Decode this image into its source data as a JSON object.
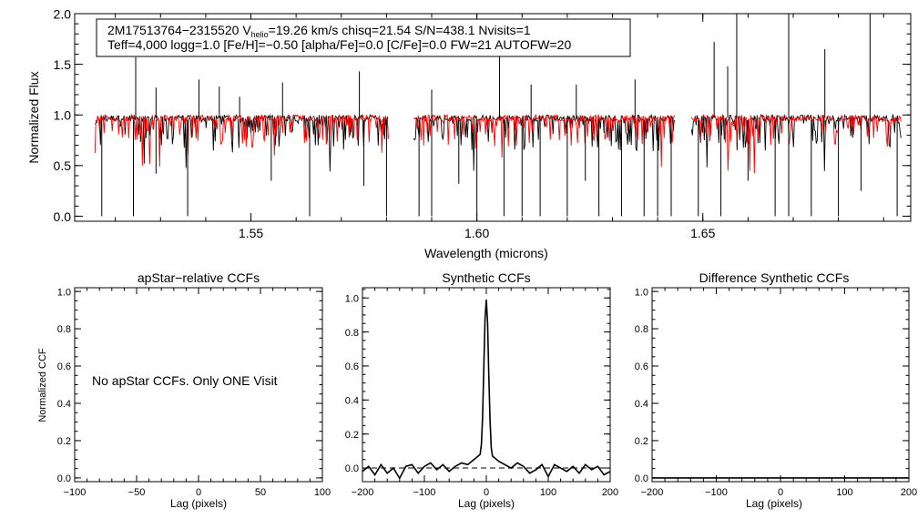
{
  "chart_data": [
    {
      "type": "line",
      "panel": "spectrum",
      "header": {
        "line1": {
          "star_id": "2M17513764−2315520",
          "v_prefix": "V",
          "v_sub": "helio",
          "v_suffix": "=19.26 km/s  chisq=21.54  S/N=438.1  Nvisits=1"
        },
        "line2": "Teff=4,000 logg=1.0 [Fe/H]=−0.50 [alpha/Fe]=0.0 [C/Fe]=0.0 FW=21 AUTOFW=20"
      },
      "xlabel": "Wavelength (microns)",
      "ylabel": "Normalized Flux",
      "xlim": [
        1.511,
        1.696
      ],
      "ylim": [
        -0.05,
        2.0
      ],
      "xticks": [
        {
          "value": 1.55,
          "label": "1.55"
        },
        {
          "value": 1.6,
          "label": "1.60"
        },
        {
          "value": 1.65,
          "label": "1.65"
        }
      ],
      "yticks": [
        {
          "value": 0.0,
          "label": "0.0"
        },
        {
          "value": 0.5,
          "label": "0.5"
        },
        {
          "value": 1.0,
          "label": "1.0"
        },
        {
          "value": 1.5,
          "label": "1.5"
        },
        {
          "value": 2.0,
          "label": "2.0"
        }
      ],
      "chips": [
        [
          1.5155,
          1.5805
        ],
        [
          1.586,
          1.644
        ],
        [
          1.6475,
          1.694
        ]
      ],
      "series": [
        {
          "color": "#000000",
          "continuum": 0.97
        },
        {
          "color": "#ff0000",
          "continuum": 0.97
        }
      ],
      "spikes": [
        {
          "x": 1.5245,
          "y": 1.57
        },
        {
          "x": 1.529,
          "y": 1.27
        },
        {
          "x": 1.5385,
          "y": 1.35
        },
        {
          "x": 1.543,
          "y": 1.28
        },
        {
          "x": 1.5475,
          "y": 1.18
        },
        {
          "x": 1.557,
          "y": 1.32
        },
        {
          "x": 1.574,
          "y": 1.43
        },
        {
          "x": 1.59,
          "y": 1.25
        },
        {
          "x": 1.605,
          "y": 1.77
        },
        {
          "x": 1.612,
          "y": 1.3
        },
        {
          "x": 1.622,
          "y": 1.3
        },
        {
          "x": 1.635,
          "y": 1.35
        },
        {
          "x": 1.6525,
          "y": 1.72
        },
        {
          "x": 1.6555,
          "y": 1.48
        },
        {
          "x": 1.6575,
          "y": 2.0
        },
        {
          "x": 1.669,
          "y": 2.0
        },
        {
          "x": 1.677,
          "y": 1.65
        },
        {
          "x": 1.687,
          "y": 2.0
        }
      ],
      "dips": [
        {
          "x": 1.517,
          "y": 0.0
        },
        {
          "x": 1.524,
          "y": 0.0
        },
        {
          "x": 1.529,
          "y": 0.42
        },
        {
          "x": 1.536,
          "y": 0.0
        },
        {
          "x": 1.5545,
          "y": 0.35
        },
        {
          "x": 1.563,
          "y": 0.0
        },
        {
          "x": 1.575,
          "y": 0.3
        },
        {
          "x": 1.58,
          "y": 0.0
        },
        {
          "x": 1.5872,
          "y": 0.0
        },
        {
          "x": 1.59,
          "y": 0.0
        },
        {
          "x": 1.596,
          "y": 0.32
        },
        {
          "x": 1.6,
          "y": 0.0
        },
        {
          "x": 1.606,
          "y": 0.0
        },
        {
          "x": 1.61,
          "y": 0.0
        },
        {
          "x": 1.614,
          "y": 0.0
        },
        {
          "x": 1.62,
          "y": 0.0
        },
        {
          "x": 1.624,
          "y": 0.35
        },
        {
          "x": 1.627,
          "y": 0.0
        },
        {
          "x": 1.632,
          "y": 0.0
        },
        {
          "x": 1.637,
          "y": 0.0
        },
        {
          "x": 1.64,
          "y": 0.0
        },
        {
          "x": 1.643,
          "y": 0.0
        },
        {
          "x": 1.649,
          "y": 0.0
        },
        {
          "x": 1.654,
          "y": 0.0
        },
        {
          "x": 1.66,
          "y": 0.35
        },
        {
          "x": 1.666,
          "y": 0.0
        },
        {
          "x": 1.669,
          "y": 0.0
        },
        {
          "x": 1.674,
          "y": 0.0
        },
        {
          "x": 1.68,
          "y": 0.0
        },
        {
          "x": 1.685,
          "y": 0.25
        },
        {
          "x": 1.693,
          "y": 0.0
        }
      ]
    },
    {
      "type": "line",
      "panel": "apstar-relative",
      "title": "apStar−relative CCFs",
      "xlabel": "Lag (pixels)",
      "ylabel": "Normalized CCF",
      "xlim": [
        -100,
        100
      ],
      "ylim": [
        -0.02,
        1.02
      ],
      "xticks": [
        {
          "value": -100,
          "label": "−100"
        },
        {
          "value": -50,
          "label": "−50"
        },
        {
          "value": 0,
          "label": "0"
        },
        {
          "value": 50,
          "label": "50"
        },
        {
          "value": 100,
          "label": "100"
        }
      ],
      "yticks": [
        {
          "value": 0.0,
          "label": "0.0"
        },
        {
          "value": 0.2,
          "label": "0.2"
        },
        {
          "value": 0.4,
          "label": "0.4"
        },
        {
          "value": 0.6,
          "label": "0.6"
        },
        {
          "value": 0.8,
          "label": "0.8"
        },
        {
          "value": 1.0,
          "label": "1.0"
        }
      ],
      "annotation": "No apStar CCFs.  Only ONE Visit",
      "series": []
    },
    {
      "type": "line",
      "panel": "synthetic",
      "title": "Synthetic CCFs",
      "xlabel": "Lag (pixels)",
      "xlim": [
        -200,
        200
      ],
      "ylim": [
        -0.08,
        1.06
      ],
      "xticks": [
        {
          "value": -200,
          "label": "−200"
        },
        {
          "value": -100,
          "label": "−100"
        },
        {
          "value": 0,
          "label": "0"
        },
        {
          "value": 100,
          "label": "100"
        },
        {
          "value": 200,
          "label": "200"
        }
      ],
      "yticks": [
        {
          "value": 0.0,
          "label": "0.0"
        },
        {
          "value": 0.2,
          "label": "0.2"
        },
        {
          "value": 0.4,
          "label": "0.4"
        },
        {
          "value": 0.6,
          "label": "0.6"
        },
        {
          "value": 0.8,
          "label": "0.8"
        },
        {
          "value": 1.0,
          "label": "1.0"
        }
      ],
      "reference_y": 0.0,
      "series": [
        {
          "color": "#000000",
          "x": [
            -200,
            -190,
            -180,
            -170,
            -160,
            -150,
            -140,
            -130,
            -120,
            -110,
            -100,
            -90,
            -80,
            -70,
            -60,
            -50,
            -40,
            -30,
            -20,
            -10,
            -8,
            -6,
            -4,
            -2,
            0,
            2,
            4,
            6,
            8,
            10,
            20,
            30,
            40,
            50,
            60,
            70,
            80,
            90,
            100,
            110,
            120,
            130,
            140,
            150,
            160,
            170,
            180,
            190,
            200
          ],
          "y": [
            -0.02,
            0.01,
            -0.04,
            0.02,
            -0.03,
            0.0,
            -0.06,
            0.01,
            0.02,
            -0.03,
            0.01,
            0.03,
            -0.01,
            0.02,
            -0.02,
            0.01,
            0.03,
            0.02,
            0.05,
            0.08,
            0.14,
            0.3,
            0.6,
            0.88,
            0.99,
            0.85,
            0.55,
            0.28,
            0.12,
            0.07,
            0.04,
            0.02,
            0.0,
            0.03,
            0.01,
            -0.03,
            -0.01,
            0.02,
            -0.05,
            0.02,
            0.0,
            -0.02,
            0.01,
            -0.03,
            0.02,
            -0.01,
            0.01,
            -0.04,
            -0.02
          ]
        }
      ]
    },
    {
      "type": "line",
      "panel": "difference",
      "title": "Difference Synthetic CCFs",
      "xlabel": "Lag (pixels)",
      "xlim": [
        -200,
        200
      ],
      "ylim": [
        -0.02,
        1.02
      ],
      "xticks": [
        {
          "value": -200,
          "label": "−200"
        },
        {
          "value": -100,
          "label": "−100"
        },
        {
          "value": 0,
          "label": "0"
        },
        {
          "value": 100,
          "label": "100"
        },
        {
          "value": 200,
          "label": "200"
        }
      ],
      "yticks": [
        {
          "value": 0.0,
          "label": "0.0"
        },
        {
          "value": 0.2,
          "label": "0.2"
        },
        {
          "value": 0.4,
          "label": "0.4"
        },
        {
          "value": 0.6,
          "label": "0.6"
        },
        {
          "value": 0.8,
          "label": "0.8"
        },
        {
          "value": 1.0,
          "label": "1.0"
        }
      ],
      "series": [
        {
          "color": "#000000",
          "x": [
            -200,
            200
          ],
          "y": [
            0.0,
            0.0
          ]
        }
      ]
    }
  ]
}
